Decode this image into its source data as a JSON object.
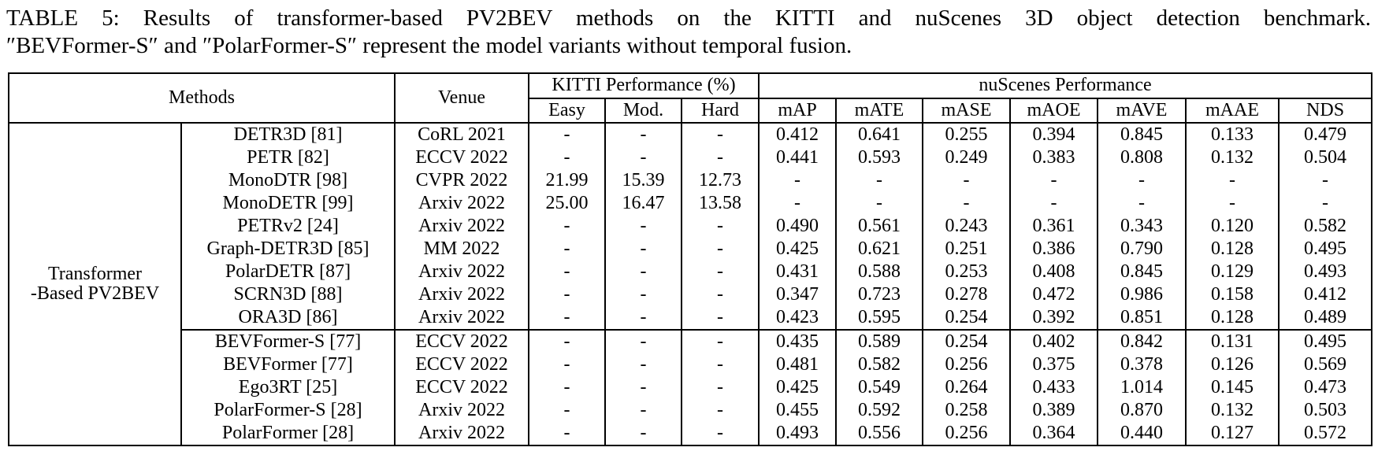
{
  "caption": {
    "line1": "TABLE 5: Results of transformer-based PV2BEV methods on the KITTI and nuScenes 3D object detection benchmark.",
    "line2": "″BEVFormer-S″ and ″PolarFormer-S″ represent the model variants without temporal fusion."
  },
  "colors": {
    "text": "#000000",
    "background": "#ffffff",
    "rule": "#000000"
  },
  "table": {
    "header": {
      "methods": "Methods",
      "venue": "Venue",
      "kitti_group": "KITTI Performance (%)",
      "nuscenes_group": "nuScenes Performance",
      "kitti_columns": [
        "Easy",
        "Mod.",
        "Hard"
      ],
      "nuscenes_columns": [
        "mAP",
        "mATE",
        "mASE",
        "mAOE",
        "mAVE",
        "mAAE",
        "NDS"
      ]
    },
    "group_label_lines": [
      "Transformer",
      "-Based PV2BEV"
    ],
    "metric_keys": [
      "easy",
      "mod",
      "hard",
      "map",
      "mate",
      "mase",
      "maoe",
      "mave",
      "maae",
      "nds"
    ],
    "rows": [
      {
        "method": "DETR3D [81]",
        "venue": "CoRL 2021",
        "values": [
          "-",
          "-",
          "-",
          "0.412",
          "0.641",
          "0.255",
          "0.394",
          "0.845",
          "0.133",
          "0.479"
        ]
      },
      {
        "method": "PETR [82]",
        "venue": "ECCV 2022",
        "values": [
          "-",
          "-",
          "-",
          "0.441",
          "0.593",
          "0.249",
          "0.383",
          "0.808",
          "0.132",
          "0.504"
        ]
      },
      {
        "method": "MonoDTR [98]",
        "venue": "CVPR 2022",
        "values": [
          "21.99",
          "15.39",
          "12.73",
          "-",
          "-",
          "-",
          "-",
          "-",
          "-",
          "-"
        ]
      },
      {
        "method": "MonoDETR [99]",
        "venue": "Arxiv 2022",
        "values": [
          "25.00",
          "16.47",
          "13.58",
          "-",
          "-",
          "-",
          "-",
          "-",
          "-",
          "-"
        ]
      },
      {
        "method": "PETRv2 [24]",
        "venue": "Arxiv 2022",
        "values": [
          "-",
          "-",
          "-",
          "0.490",
          "0.561",
          "0.243",
          "0.361",
          "0.343",
          "0.120",
          "0.582"
        ]
      },
      {
        "method": "Graph-DETR3D [85]",
        "venue": "MM 2022",
        "values": [
          "-",
          "-",
          "-",
          "0.425",
          "0.621",
          "0.251",
          "0.386",
          "0.790",
          "0.128",
          "0.495"
        ]
      },
      {
        "method": "PolarDETR [87]",
        "venue": "Arxiv 2022",
        "values": [
          "-",
          "-",
          "-",
          "0.431",
          "0.588",
          "0.253",
          "0.408",
          "0.845",
          "0.129",
          "0.493"
        ]
      },
      {
        "method": "SCRN3D [88]",
        "venue": "Arxiv 2022",
        "values": [
          "-",
          "-",
          "-",
          "0.347",
          "0.723",
          "0.278",
          "0.472",
          "0.986",
          "0.158",
          "0.412"
        ]
      },
      {
        "method": "ORA3D [86]",
        "venue": "Arxiv 2022",
        "values": [
          "-",
          "-",
          "-",
          "0.423",
          "0.595",
          "0.254",
          "0.392",
          "0.851",
          "0.128",
          "0.489"
        ]
      },
      {
        "method": "BEVFormer-S [77]",
        "venue": "ECCV 2022",
        "divider_above": true,
        "values": [
          "-",
          "-",
          "-",
          "0.435",
          "0.589",
          "0.254",
          "0.402",
          "0.842",
          "0.131",
          "0.495"
        ]
      },
      {
        "method": "BEVFormer [77]",
        "venue": "ECCV 2022",
        "values": [
          "-",
          "-",
          "-",
          "0.481",
          "0.582",
          "0.256",
          "0.375",
          "0.378",
          "0.126",
          "0.569"
        ]
      },
      {
        "method": "Ego3RT [25]",
        "venue": "ECCV 2022",
        "values": [
          "-",
          "-",
          "-",
          "0.425",
          "0.549",
          "0.264",
          "0.433",
          "1.014",
          "0.145",
          "0.473"
        ]
      },
      {
        "method": "PolarFormer-S [28]",
        "venue": "Arxiv 2022",
        "values": [
          "-",
          "-",
          "-",
          "0.455",
          "0.592",
          "0.258",
          "0.389",
          "0.870",
          "0.132",
          "0.503"
        ]
      },
      {
        "method": "PolarFormer [28]",
        "venue": "Arxiv 2022",
        "values": [
          "-",
          "-",
          "-",
          "0.493",
          "0.556",
          "0.256",
          "0.364",
          "0.440",
          "0.127",
          "0.572"
        ]
      }
    ]
  }
}
